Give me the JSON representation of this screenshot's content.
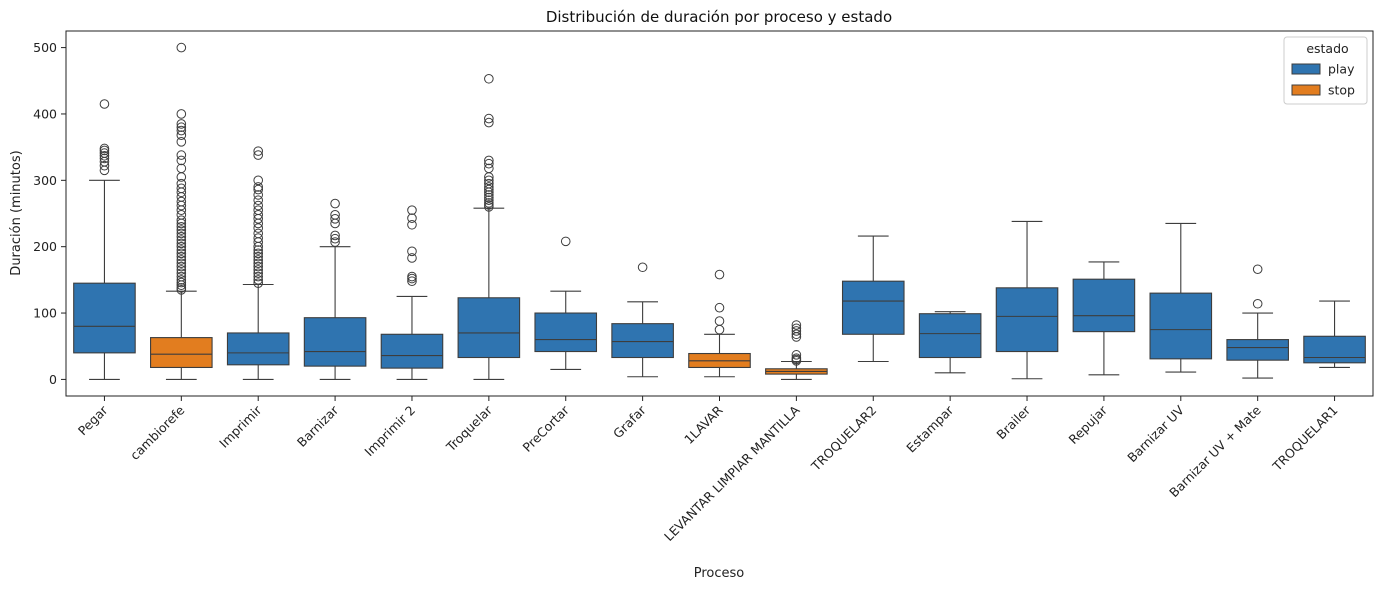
{
  "chart_data": {
    "type": "box",
    "title": "Distribución de duración por proceso y estado",
    "xlabel": "Proceso",
    "ylabel": "Duración (minutos)",
    "ylim": [
      -25,
      525
    ],
    "yticks": [
      0,
      100,
      200,
      300,
      400,
      500
    ],
    "legend": {
      "title": "estado",
      "placement": "top-right",
      "entries": [
        {
          "label": "play",
          "color": "#2f74b0"
        },
        {
          "label": "stop",
          "color": "#e27d1f"
        }
      ]
    },
    "categories": [
      "Pegar",
      "cambiorefe",
      "Imprimir",
      "Barnizar",
      "Imprimir 2",
      "Troquelar",
      "PreCortar",
      "Grafar",
      "1LAVAR",
      "LEVANTAR LIMPIAR MANTILLA",
      "TROQUELAR2",
      "Estampar",
      "Brailer",
      "Repujar",
      "Barnizar UV",
      "Barnizar UV + Mate",
      "TROQUELAR1"
    ],
    "boxes": [
      {
        "category": "Pegar",
        "estado": "play",
        "min": 0,
        "q1": 40,
        "median": 80,
        "q3": 145,
        "max": 300,
        "outliers": [
          315,
          322,
          328,
          333,
          337,
          341,
          345,
          348,
          415
        ]
      },
      {
        "category": "cambiorefe",
        "estado": "stop",
        "min": 0,
        "q1": 18,
        "median": 38,
        "q3": 63,
        "max": 133,
        "outliers": [
          135,
          138,
          142,
          146,
          150,
          155,
          160,
          165,
          170,
          175,
          180,
          185,
          190,
          195,
          200,
          205,
          210,
          215,
          220,
          225,
          230,
          235,
          240,
          248,
          255,
          262,
          268,
          275,
          282,
          288,
          295,
          305,
          318,
          330,
          338,
          358,
          368,
          375,
          380,
          385,
          400,
          500
        ]
      },
      {
        "category": "Imprimir",
        "estado": "play",
        "min": 0,
        "q1": 22,
        "median": 40,
        "q3": 70,
        "max": 143,
        "outliers": [
          145,
          150,
          155,
          160,
          165,
          170,
          175,
          180,
          185,
          190,
          195,
          200,
          207,
          213,
          220,
          228,
          235,
          242,
          248,
          255,
          262,
          270,
          278,
          286,
          290,
          300,
          338,
          344
        ]
      },
      {
        "category": "Barnizar",
        "estado": "play",
        "min": 0,
        "q1": 20,
        "median": 42,
        "q3": 93,
        "max": 200,
        "outliers": [
          207,
          212,
          217,
          235,
          242,
          248,
          265
        ]
      },
      {
        "category": "Imprimir 2",
        "estado": "play",
        "min": 0,
        "q1": 17,
        "median": 36,
        "q3": 68,
        "max": 125,
        "outliers": [
          148,
          152,
          155,
          183,
          193,
          233,
          243,
          255
        ]
      },
      {
        "category": "Troquelar",
        "estado": "play",
        "min": 0,
        "q1": 33,
        "median": 70,
        "q3": 123,
        "max": 258,
        "outliers": [
          260,
          263,
          266,
          270,
          274,
          278,
          282,
          286,
          290,
          295,
          300,
          305,
          318,
          325,
          330,
          387,
          393,
          453
        ]
      },
      {
        "category": "PreCortar",
        "estado": "play",
        "min": 15,
        "q1": 42,
        "median": 60,
        "q3": 100,
        "max": 133,
        "outliers": [
          208
        ]
      },
      {
        "category": "Grafar",
        "estado": "play",
        "min": 4,
        "q1": 33,
        "median": 57,
        "q3": 84,
        "max": 117,
        "outliers": [
          169
        ]
      },
      {
        "category": "1LAVAR",
        "estado": "stop",
        "min": 4,
        "q1": 18,
        "median": 28,
        "q3": 39,
        "max": 68,
        "outliers": [
          75,
          88,
          108,
          158
        ]
      },
      {
        "category": "LEVANTAR LIMPIAR MANTILLA",
        "estado": "stop",
        "min": 0,
        "q1": 8,
        "median": 12,
        "q3": 16,
        "max": 27,
        "outliers": [
          28,
          30,
          32,
          37,
          64,
          68,
          73,
          77,
          82
        ]
      },
      {
        "category": "TROQUELAR2",
        "estado": "play",
        "min": 27,
        "q1": 68,
        "median": 118,
        "q3": 148,
        "max": 216,
        "outliers": []
      },
      {
        "category": "Estampar",
        "estado": "play",
        "min": 10,
        "q1": 33,
        "median": 69,
        "q3": 99,
        "max": 102,
        "outliers": []
      },
      {
        "category": "Brailer",
        "estado": "play",
        "min": 1,
        "q1": 42,
        "median": 95,
        "q3": 138,
        "max": 238,
        "outliers": []
      },
      {
        "category": "Repujar",
        "estado": "play",
        "min": 7,
        "q1": 72,
        "median": 96,
        "q3": 151,
        "max": 177,
        "outliers": []
      },
      {
        "category": "Barnizar UV",
        "estado": "play",
        "min": 11,
        "q1": 31,
        "median": 75,
        "q3": 130,
        "max": 235,
        "outliers": []
      },
      {
        "category": "Barnizar UV + Mate",
        "estado": "play",
        "min": 2,
        "q1": 29,
        "median": 48,
        "q3": 60,
        "max": 100,
        "outliers": [
          114,
          166
        ]
      },
      {
        "category": "TROQUELAR1",
        "estado": "play",
        "min": 18,
        "q1": 25,
        "median": 33,
        "q3": 65,
        "max": 118,
        "outliers": []
      }
    ]
  }
}
